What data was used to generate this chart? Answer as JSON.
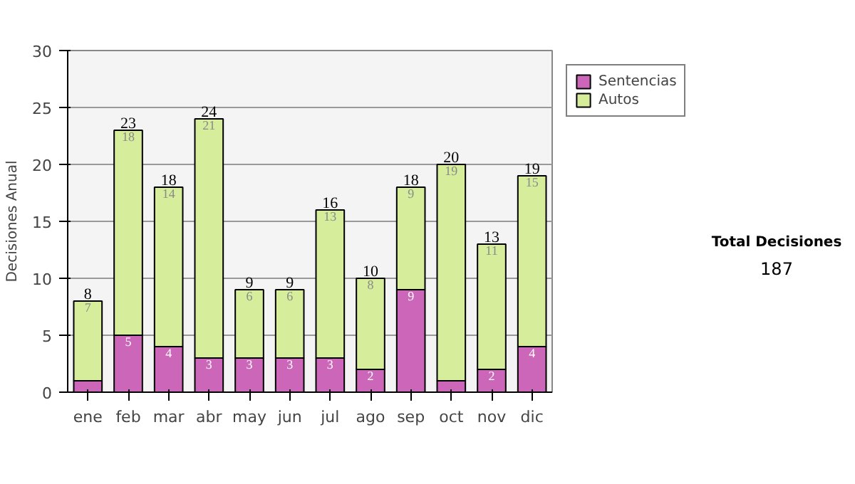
{
  "chart_data": {
    "type": "bar",
    "stacked": true,
    "ylabel": "Decisiones Anual",
    "categories": [
      "ene",
      "feb",
      "mar",
      "abr",
      "may",
      "jun",
      "jul",
      "ago",
      "sep",
      "oct",
      "nov",
      "dic"
    ],
    "series": [
      {
        "name": "Sentencias",
        "color": "#cc66b8",
        "values": [
          1,
          5,
          4,
          3,
          3,
          3,
          3,
          2,
          9,
          1,
          2,
          4
        ],
        "value_labels": [
          null,
          "5",
          "4",
          "3",
          "3",
          "3",
          "3",
          "2",
          "9",
          null,
          "2",
          "4"
        ]
      },
      {
        "name": "Autos",
        "color": "#d6ee9c",
        "values": [
          7,
          18,
          14,
          21,
          6,
          6,
          13,
          8,
          9,
          19,
          11,
          15
        ],
        "value_labels": [
          "7",
          "18",
          "14",
          "21",
          "6",
          "6",
          "13",
          "8",
          "9",
          "19",
          "11",
          "15"
        ]
      }
    ],
    "totals": [
      "8",
      "23",
      "18",
      "24",
      "9",
      "9",
      "16",
      "10",
      "18",
      "20",
      "13",
      "19"
    ],
    "ylim": [
      0,
      30
    ],
    "yticks": [
      0,
      5,
      10,
      15,
      20,
      25,
      30
    ],
    "grid": "y",
    "legend": "top right",
    "annotations": [
      "Total Decisiones",
      "187"
    ]
  }
}
